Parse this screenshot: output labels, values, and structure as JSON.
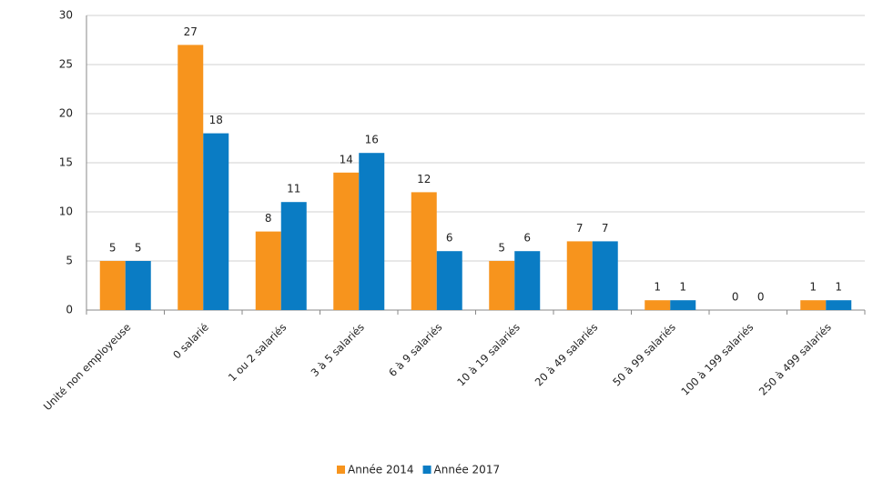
{
  "chart_data": {
    "type": "bar",
    "categories": [
      "Unité non employeuse",
      "0 salarié",
      "1 ou 2 salariés",
      "3 à 5 salariés",
      "6 à 9 salariés",
      "10 à 19 salariés",
      "20 à 49 salariés",
      "50 à 99 salariés",
      "100 à 199 salariés",
      "250 à 499 salariés"
    ],
    "series": [
      {
        "name": "Année 2014",
        "color": "#f7941d",
        "values": [
          5,
          27,
          8,
          14,
          12,
          5,
          7,
          1,
          0,
          1
        ]
      },
      {
        "name": "Année 2017",
        "color": "#0a7cc4",
        "values": [
          5,
          18,
          11,
          16,
          6,
          6,
          7,
          1,
          0,
          1
        ]
      }
    ],
    "ylim": [
      0,
      30
    ],
    "yticks": [
      0,
      5,
      10,
      15,
      20,
      25,
      30
    ],
    "grid": true,
    "legend": "bottom"
  }
}
